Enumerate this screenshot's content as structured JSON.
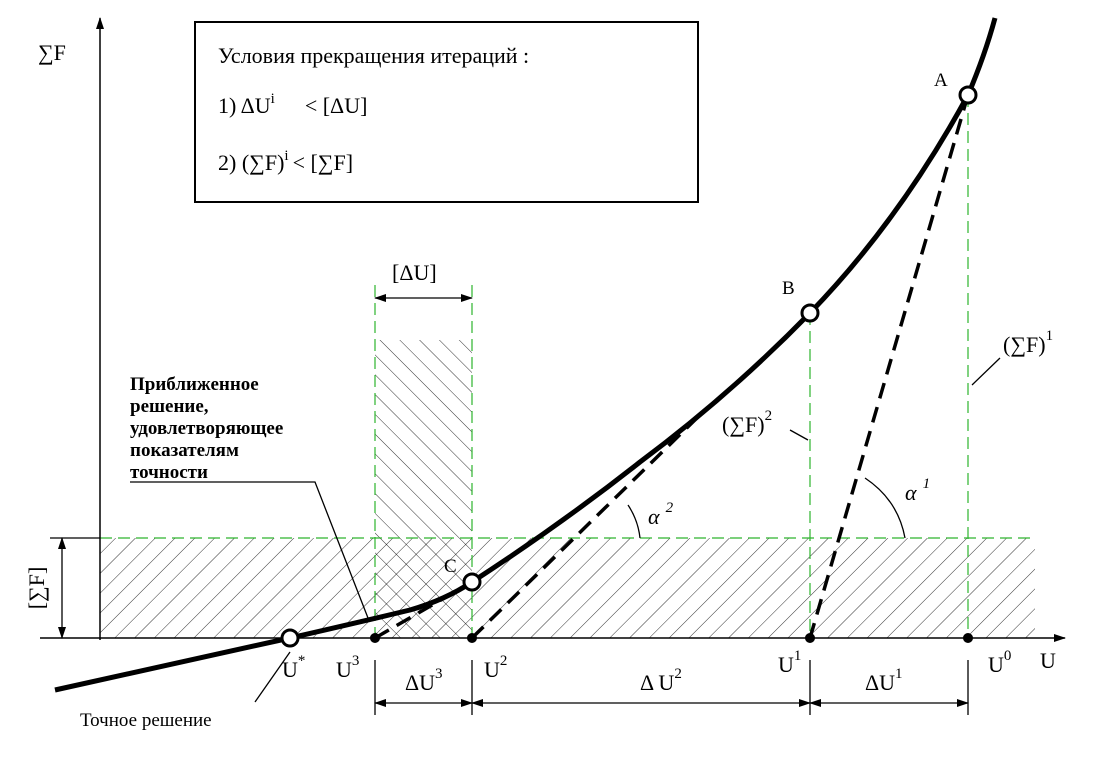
{
  "axes": {
    "y_label": "∑F",
    "x_label": "U"
  },
  "conditions": {
    "title": "Условия прекращения итераций :",
    "items": [
      {
        "text": "1) ΔU",
        "sup": "i",
        "tail": "< [ΔU]"
      },
      {
        "text": "2) (∑F)",
        "sup": "i",
        "tail": "< [∑F]"
      }
    ]
  },
  "tolerance_u": "[ΔU]",
  "tolerance_f": "[∑F]",
  "approx_note": [
    "Приближенное",
    "решение,",
    "удовлетворяющее",
    "показателям",
    "точности"
  ],
  "exact_note": "Точное решение",
  "points": {
    "a": "A",
    "b": "B",
    "c": "C"
  },
  "residuals": [
    {
      "text": "(∑F)",
      "sup": "1"
    },
    {
      "text": "(∑F)",
      "sup": "2"
    }
  ],
  "angles": [
    {
      "text": "α",
      "sup": "1"
    },
    {
      "text": "α",
      "sup": "2"
    }
  ],
  "u_labels": [
    {
      "text": "U",
      "sup": "*"
    },
    {
      "text": "U",
      "sup": "3"
    },
    {
      "text": "U",
      "sup": "2"
    },
    {
      "text": "U",
      "sup": "1"
    },
    {
      "text": "U",
      "sup": "0"
    }
  ],
  "steps": [
    {
      "text": "ΔU",
      "sup": "3"
    },
    {
      "text": "Δ U",
      "sup": "2"
    },
    {
      "text": "ΔU",
      "sup": "1"
    }
  ]
}
